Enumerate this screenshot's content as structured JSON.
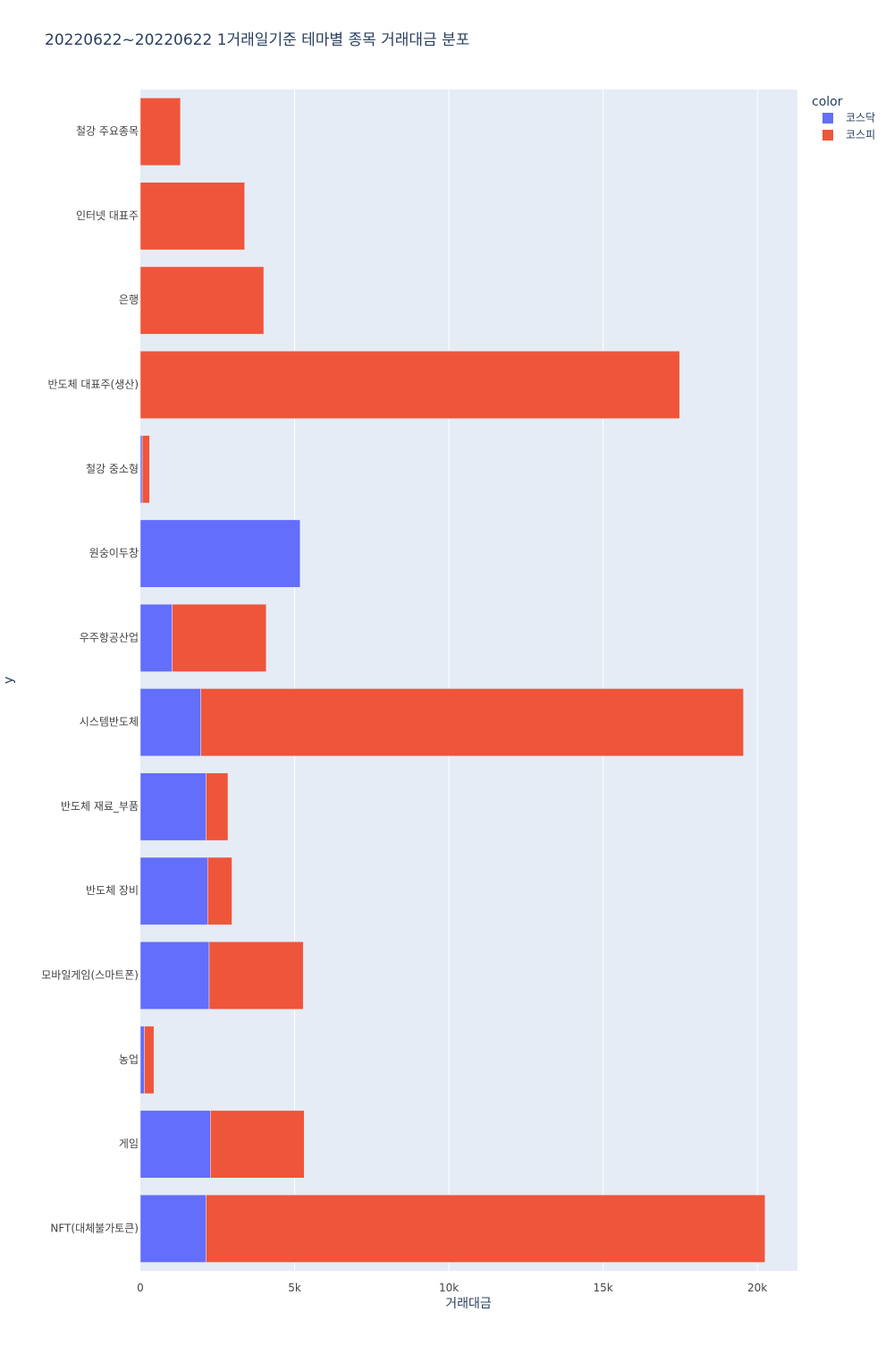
{
  "chart_data": {
    "type": "bar",
    "orientation": "horizontal",
    "barmode": "stack",
    "title": "20220622~20220622 1거래일기준 테마별 종목 거래대금 분포",
    "xlabel": "거래대금",
    "ylabel": "y",
    "xlim": [
      0,
      21300
    ],
    "x_ticks": [
      0,
      5000,
      10000,
      15000,
      20000
    ],
    "x_tick_labels": [
      "0",
      "5k",
      "10k",
      "15k",
      "20k"
    ],
    "grid": true,
    "legend": {
      "title": "color",
      "position": "top-right"
    },
    "categories": [
      "철강 주요종목",
      "인터넷 대표주",
      "은행",
      "반도체 대표주(생산)",
      "철강 중소형",
      "원숭이두창",
      "우주항공산업",
      "시스템반도체",
      "반도체 재료_부품",
      "반도체 장비",
      "모바일게임(스마트폰)",
      "농업",
      "게임",
      "NFT(대체불가토큰)"
    ],
    "series": [
      {
        "name": "코스닥",
        "color": "#636efa",
        "values": [
          0,
          0,
          0,
          0,
          60,
          5180,
          1030,
          1960,
          2130,
          2180,
          2230,
          130,
          2270,
          2130
        ]
      },
      {
        "name": "코스피",
        "color": "#ef553b",
        "values": [
          1300,
          3380,
          4000,
          17480,
          240,
          0,
          3050,
          17590,
          710,
          790,
          3050,
          310,
          3040,
          18120
        ]
      }
    ]
  },
  "colors": {
    "plot_bg": "#e5ecf6",
    "grid": "#ffffff",
    "text": "#2a3f5f",
    "axis_text": "#444444"
  }
}
